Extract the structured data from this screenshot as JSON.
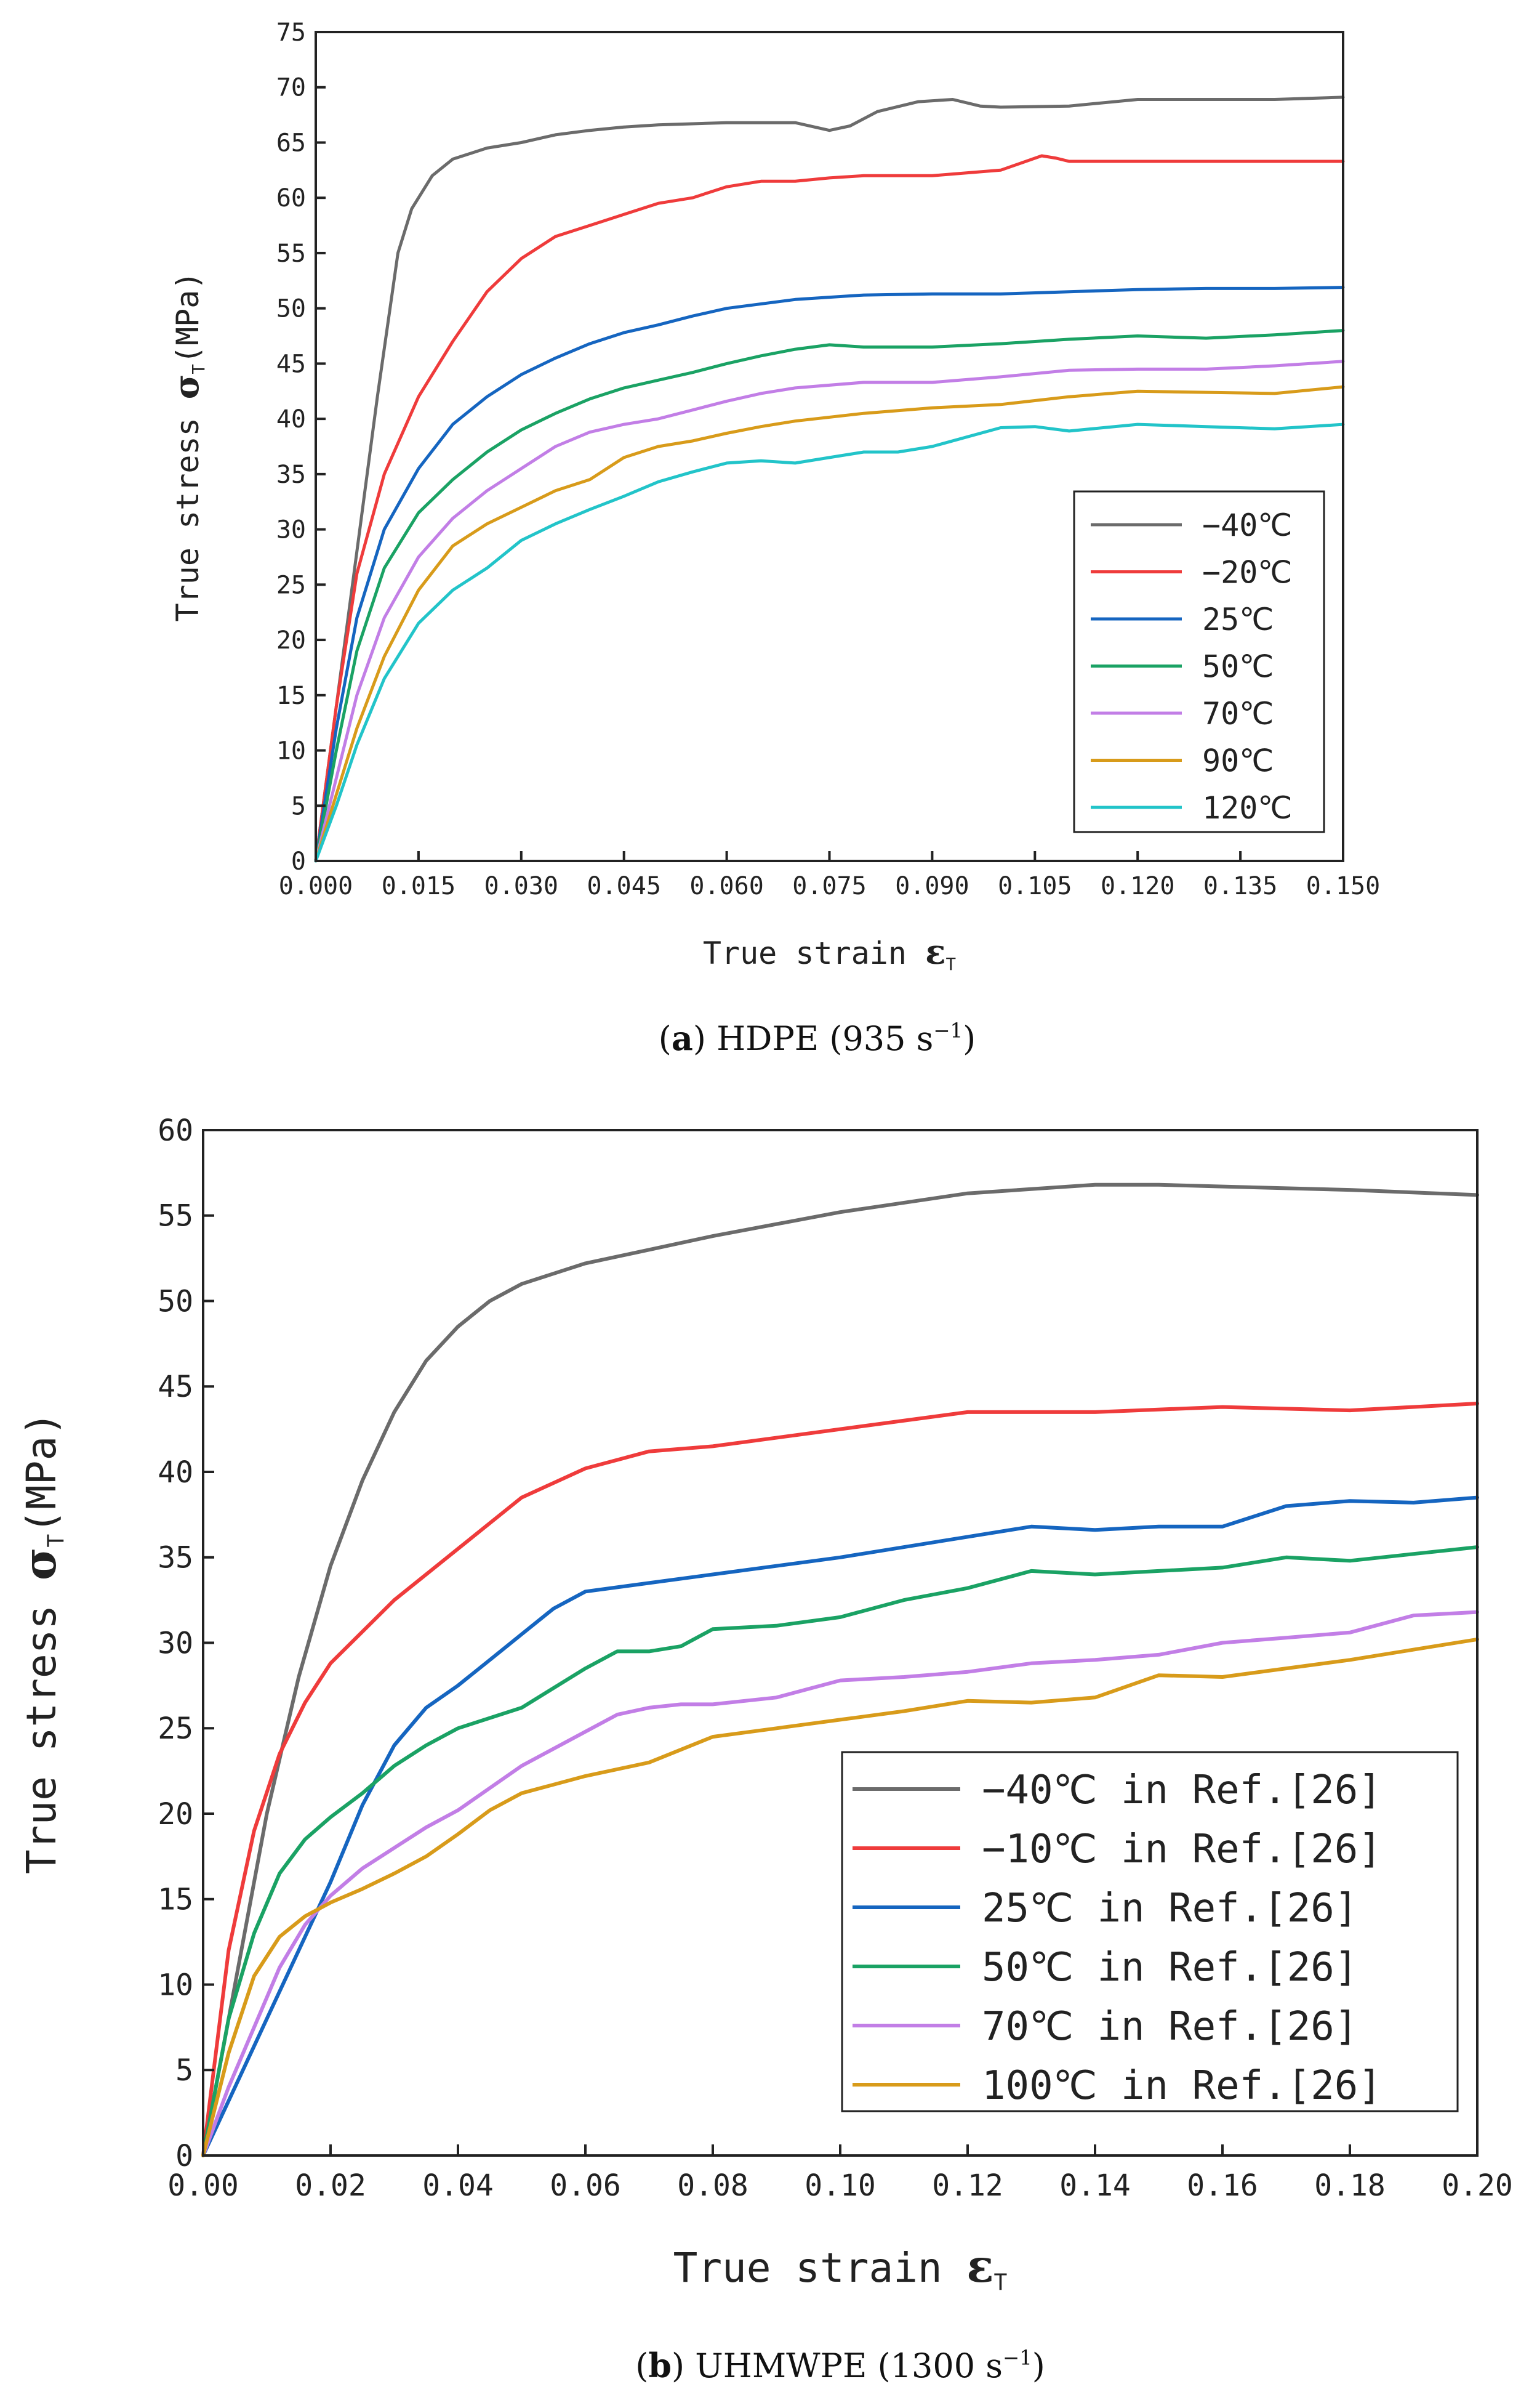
{
  "chart_data": [
    {
      "type": "line",
      "panel": "a",
      "caption_label": "(a)",
      "caption_text": "HDPE (935 s",
      "caption_sup": "−1",
      "caption_close": ")",
      "xlabel": "True strain ",
      "xlabel_symbol": "ε",
      "xlabel_sub": "T",
      "ylabel": "True stress ",
      "ylabel_symbol": "σ",
      "ylabel_sub": "T",
      "ylabel_unit": "(MPa)",
      "xlim": [
        0,
        0.15
      ],
      "ylim": [
        0,
        75
      ],
      "xticks": [
        0.0,
        0.015,
        0.03,
        0.045,
        0.06,
        0.075,
        0.09,
        0.105,
        0.12,
        0.135,
        0.15
      ],
      "xtick_labels": [
        "0.000",
        "0.015",
        "0.030",
        "0.045",
        "0.060",
        "0.075",
        "0.090",
        "0.105",
        "0.120",
        "0.135",
        "0.150"
      ],
      "yticks": [
        0,
        5,
        10,
        15,
        20,
        25,
        30,
        35,
        40,
        45,
        50,
        55,
        60,
        65,
        70,
        75
      ],
      "ytick_labels": [
        "0",
        "5",
        "10",
        "15",
        "20",
        "25",
        "30",
        "35",
        "40",
        "45",
        "50",
        "55",
        "60",
        "65",
        "70",
        "75"
      ],
      "legend_position": "bottom-right",
      "series": [
        {
          "name": "−40℃",
          "color": "#6b6b6b",
          "x": [
            0,
            0.003,
            0.006,
            0.009,
            0.012,
            0.014,
            0.017,
            0.02,
            0.025,
            0.03,
            0.035,
            0.04,
            0.045,
            0.05,
            0.06,
            0.07,
            0.075,
            0.078,
            0.082,
            0.088,
            0.093,
            0.097,
            0.1,
            0.11,
            0.12,
            0.13,
            0.14,
            0.15
          ],
          "y": [
            0,
            14,
            28,
            42,
            55,
            59,
            62,
            63.5,
            64.5,
            65,
            65.7,
            66.1,
            66.4,
            66.6,
            66.8,
            66.8,
            66.1,
            66.5,
            67.8,
            68.7,
            68.9,
            68.3,
            68.2,
            68.3,
            68.9,
            68.9,
            68.9,
            69.1
          ]
        },
        {
          "name": "−20℃",
          "color": "#ef3b3b",
          "x": [
            0,
            0.003,
            0.006,
            0.01,
            0.015,
            0.02,
            0.025,
            0.03,
            0.035,
            0.04,
            0.045,
            0.05,
            0.055,
            0.06,
            0.065,
            0.07,
            0.075,
            0.08,
            0.09,
            0.1,
            0.106,
            0.108,
            0.11,
            0.12,
            0.13,
            0.14,
            0.15
          ],
          "y": [
            0,
            14,
            26,
            35,
            42,
            47,
            51.5,
            54.5,
            56.5,
            57.5,
            58.5,
            59.5,
            60,
            61,
            61.5,
            61.5,
            61.8,
            62,
            62,
            62.5,
            63.8,
            63.6,
            63.3,
            63.3,
            63.3,
            63.3,
            63.3
          ]
        },
        {
          "name": "25℃",
          "color": "#1565c0",
          "x": [
            0,
            0.003,
            0.006,
            0.01,
            0.015,
            0.02,
            0.025,
            0.03,
            0.035,
            0.04,
            0.045,
            0.05,
            0.055,
            0.06,
            0.07,
            0.08,
            0.09,
            0.1,
            0.11,
            0.12,
            0.13,
            0.14,
            0.15
          ],
          "y": [
            0,
            12,
            22,
            30,
            35.5,
            39.5,
            42,
            44,
            45.5,
            46.8,
            47.8,
            48.5,
            49.3,
            50,
            50.8,
            51.2,
            51.3,
            51.3,
            51.5,
            51.7,
            51.8,
            51.8,
            51.9
          ]
        },
        {
          "name": "50℃",
          "color": "#1aa264",
          "x": [
            0,
            0.003,
            0.006,
            0.01,
            0.015,
            0.02,
            0.025,
            0.03,
            0.035,
            0.04,
            0.045,
            0.05,
            0.055,
            0.06,
            0.065,
            0.07,
            0.075,
            0.08,
            0.09,
            0.1,
            0.11,
            0.12,
            0.13,
            0.14,
            0.15
          ],
          "y": [
            0,
            10,
            19,
            26.5,
            31.5,
            34.5,
            37,
            39,
            40.5,
            41.8,
            42.8,
            43.5,
            44.2,
            45,
            45.7,
            46.3,
            46.7,
            46.5,
            46.5,
            46.8,
            47.2,
            47.5,
            47.3,
            47.6,
            48
          ]
        },
        {
          "name": "70℃",
          "color": "#c27ee6",
          "x": [
            0,
            0.003,
            0.006,
            0.01,
            0.015,
            0.02,
            0.025,
            0.03,
            0.035,
            0.04,
            0.045,
            0.05,
            0.055,
            0.06,
            0.065,
            0.07,
            0.08,
            0.09,
            0.1,
            0.11,
            0.12,
            0.13,
            0.14,
            0.15
          ],
          "y": [
            0,
            7.5,
            15,
            22,
            27.5,
            31,
            33.5,
            35.5,
            37.5,
            38.8,
            39.5,
            40,
            40.8,
            41.6,
            42.3,
            42.8,
            43.3,
            43.3,
            43.8,
            44.4,
            44.5,
            44.5,
            44.8,
            45.2
          ]
        },
        {
          "name": "90℃",
          "color": "#d89b1a",
          "x": [
            0,
            0.003,
            0.006,
            0.01,
            0.015,
            0.02,
            0.025,
            0.03,
            0.035,
            0.04,
            0.045,
            0.05,
            0.055,
            0.06,
            0.065,
            0.07,
            0.08,
            0.09,
            0.1,
            0.11,
            0.12,
            0.13,
            0.14,
            0.15
          ],
          "y": [
            0,
            6,
            12,
            18.5,
            24.5,
            28.5,
            30.5,
            32,
            33.5,
            34.5,
            36.5,
            37.5,
            38,
            38.7,
            39.3,
            39.8,
            40.5,
            41,
            41.3,
            42,
            42.5,
            42.4,
            42.3,
            42.9
          ]
        },
        {
          "name": "120℃",
          "color": "#22c4c9",
          "x": [
            0,
            0.003,
            0.006,
            0.01,
            0.015,
            0.02,
            0.025,
            0.03,
            0.035,
            0.04,
            0.045,
            0.05,
            0.055,
            0.06,
            0.065,
            0.07,
            0.075,
            0.08,
            0.085,
            0.09,
            0.1,
            0.105,
            0.11,
            0.12,
            0.13,
            0.14,
            0.15
          ],
          "y": [
            0,
            5,
            10.5,
            16.5,
            21.5,
            24.5,
            26.5,
            29,
            30.5,
            31.8,
            33,
            34.3,
            35.2,
            36,
            36.2,
            36,
            36.5,
            37,
            37,
            37.5,
            39.2,
            39.3,
            38.9,
            39.5,
            39.3,
            39.1,
            39.5
          ]
        }
      ]
    },
    {
      "type": "line",
      "panel": "b",
      "caption_label": "(b)",
      "caption_text": "UHMWPE (1300 s",
      "caption_sup": "−1",
      "caption_close": ")",
      "xlabel": "True strain ",
      "xlabel_symbol": "ε",
      "xlabel_sub": "T",
      "ylabel": "True stress ",
      "ylabel_symbol": "σ",
      "ylabel_sub": "T",
      "ylabel_unit": "(MPa)",
      "xlim": [
        0,
        0.2
      ],
      "ylim": [
        0,
        60
      ],
      "xticks": [
        0.0,
        0.02,
        0.04,
        0.06,
        0.08,
        0.1,
        0.12,
        0.14,
        0.16,
        0.18,
        0.2
      ],
      "xtick_labels": [
        "0.00",
        "0.02",
        "0.04",
        "0.06",
        "0.08",
        "0.10",
        "0.12",
        "0.14",
        "0.16",
        "0.18",
        "0.20"
      ],
      "yticks": [
        0,
        5,
        10,
        15,
        20,
        25,
        30,
        35,
        40,
        45,
        50,
        55,
        60
      ],
      "ytick_labels": [
        "0",
        "5",
        "10",
        "15",
        "20",
        "25",
        "30",
        "35",
        "40",
        "45",
        "50",
        "55",
        "60"
      ],
      "legend_position": "bottom-right",
      "series": [
        {
          "name": "−40℃ in Ref.[26]",
          "color": "#6b6b6b",
          "x": [
            0,
            0.005,
            0.01,
            0.015,
            0.02,
            0.025,
            0.03,
            0.035,
            0.04,
            0.045,
            0.05,
            0.06,
            0.07,
            0.08,
            0.1,
            0.12,
            0.14,
            0.15,
            0.16,
            0.18,
            0.2
          ],
          "y": [
            0,
            10,
            20,
            28,
            34.5,
            39.5,
            43.5,
            46.5,
            48.5,
            50,
            51,
            52.2,
            53,
            53.8,
            55.2,
            56.3,
            56.8,
            56.8,
            56.7,
            56.5,
            56.2
          ]
        },
        {
          "name": "−10℃ in Ref.[26]",
          "color": "#ef3b3b",
          "x": [
            0,
            0.004,
            0.008,
            0.012,
            0.016,
            0.02,
            0.03,
            0.04,
            0.05,
            0.06,
            0.07,
            0.08,
            0.1,
            0.12,
            0.14,
            0.16,
            0.18,
            0.2
          ],
          "y": [
            0,
            12,
            19,
            23.5,
            26.5,
            28.8,
            32.5,
            35.5,
            38.5,
            40.2,
            41.2,
            41.5,
            42.5,
            43.5,
            43.5,
            43.8,
            43.6,
            44
          ]
        },
        {
          "name": "25℃ in Ref.[26]",
          "color": "#1565c0",
          "x": [
            0,
            0.005,
            0.01,
            0.015,
            0.02,
            0.025,
            0.03,
            0.035,
            0.04,
            0.045,
            0.05,
            0.055,
            0.06,
            0.07,
            0.08,
            0.1,
            0.12,
            0.13,
            0.14,
            0.15,
            0.16,
            0.17,
            0.18,
            0.19,
            0.2
          ],
          "y": [
            0,
            4,
            8,
            12,
            16,
            20.5,
            24,
            26.2,
            27.5,
            29,
            30.5,
            32,
            33,
            33.5,
            34,
            35,
            36.2,
            36.8,
            36.6,
            36.8,
            36.8,
            38,
            38.3,
            38.2,
            38.5
          ]
        },
        {
          "name": "50℃ in Ref.[26]",
          "color": "#1aa264",
          "x": [
            0,
            0.004,
            0.008,
            0.012,
            0.016,
            0.02,
            0.025,
            0.03,
            0.035,
            0.04,
            0.05,
            0.06,
            0.065,
            0.07,
            0.075,
            0.08,
            0.09,
            0.1,
            0.11,
            0.12,
            0.13,
            0.14,
            0.15,
            0.16,
            0.17,
            0.18,
            0.19,
            0.2
          ],
          "y": [
            0,
            8,
            13,
            16.5,
            18.5,
            19.8,
            21.2,
            22.8,
            24,
            25,
            26.2,
            28.5,
            29.5,
            29.5,
            29.8,
            30.8,
            31,
            31.5,
            32.5,
            33.2,
            34.2,
            34,
            34.2,
            34.4,
            35,
            34.8,
            35.2,
            35.6
          ]
        },
        {
          "name": "70℃ in Ref.[26]",
          "color": "#c27ee6",
          "x": [
            0,
            0.004,
            0.008,
            0.012,
            0.016,
            0.02,
            0.025,
            0.03,
            0.035,
            0.04,
            0.05,
            0.06,
            0.065,
            0.07,
            0.075,
            0.08,
            0.09,
            0.1,
            0.11,
            0.12,
            0.13,
            0.14,
            0.15,
            0.16,
            0.17,
            0.18,
            0.19,
            0.2
          ],
          "y": [
            0,
            4,
            7.5,
            11,
            13.5,
            15.2,
            16.8,
            18,
            19.2,
            20.2,
            22.8,
            24.8,
            25.8,
            26.2,
            26.4,
            26.4,
            26.8,
            27.8,
            28,
            28.3,
            28.8,
            29,
            29.3,
            30,
            30.3,
            30.6,
            31.6,
            31.8
          ]
        },
        {
          "name": "100℃ in Ref.[26]",
          "color": "#d89b1a",
          "x": [
            0,
            0.004,
            0.008,
            0.012,
            0.016,
            0.02,
            0.025,
            0.03,
            0.035,
            0.04,
            0.045,
            0.05,
            0.06,
            0.07,
            0.08,
            0.09,
            0.1,
            0.11,
            0.12,
            0.13,
            0.14,
            0.15,
            0.16,
            0.17,
            0.18,
            0.19,
            0.2
          ],
          "y": [
            0,
            6,
            10.5,
            12.8,
            14,
            14.8,
            15.6,
            16.5,
            17.5,
            18.8,
            20.2,
            21.2,
            22.2,
            23,
            24.5,
            25,
            25.5,
            26,
            26.6,
            26.5,
            26.8,
            28.1,
            28,
            28.5,
            29,
            29.6,
            30.2
          ]
        }
      ]
    }
  ]
}
